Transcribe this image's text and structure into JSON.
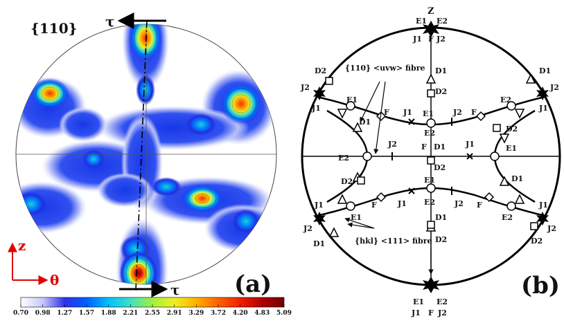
{
  "panel_a": {
    "plane_label": "{110}",
    "tau_top": "τ",
    "tau_bottom": "τ",
    "axis_z": "z",
    "axis_theta": "θ",
    "letter": "(a)",
    "colorbar_ticks": [
      "0.70",
      "0.98",
      "1.27",
      "1.57",
      "1.88",
      "2.21",
      "2.55",
      "2.91",
      "3.29",
      "3.72",
      "4.20",
      "4.83",
      "5.09"
    ],
    "colorbar_colors": [
      "#ffffff",
      "#c8c8f8",
      "#3030e8",
      "#0060ff",
      "#00c0ff",
      "#40e0c0",
      "#a0f040",
      "#f0f020",
      "#ffb000",
      "#ff6000",
      "#f02000",
      "#b00000",
      "#700000"
    ]
  },
  "panel_b": {
    "letter": "(b)",
    "pole_top": "Z",
    "fibre_110": "{110} <uvw> fibre",
    "fibre_hkl": "{hkl} <111> fibre",
    "labels": {
      "E1": "E1",
      "E2": "E2",
      "J1": "J1",
      "J2": "J2",
      "F": "F",
      "D1": "D1",
      "D2": "D2"
    }
  }
}
